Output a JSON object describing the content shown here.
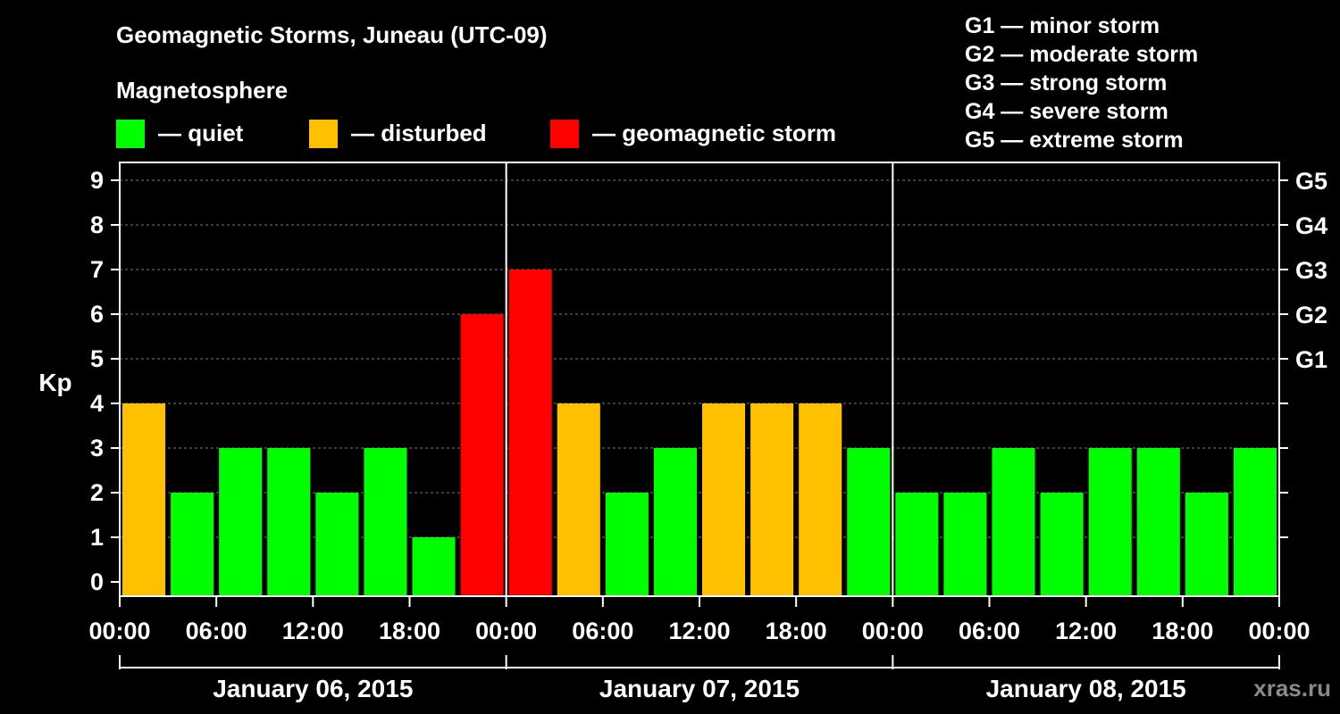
{
  "header": {
    "title": "Geomagnetic Storms, Juneau (UTC-09)",
    "section": "Magnetosphere"
  },
  "legend": [
    {
      "label": "— quiet",
      "color": "#00ff00"
    },
    {
      "label": "— disturbed",
      "color": "#ffc000"
    },
    {
      "label": "— geomagnetic storm",
      "color": "#ff0000"
    }
  ],
  "storm_scale": [
    "G1 — minor storm",
    "G2 — moderate storm",
    "G3 — strong storm",
    "G4 — severe storm",
    "G5 — extreme storm"
  ],
  "watermark": "xras.ru",
  "chart_data": {
    "type": "bar",
    "title": "Geomagnetic Storms, Juneau (UTC-09)",
    "ylabel": "Kp",
    "ylim": [
      0,
      9
    ],
    "yticks": [
      "0",
      "1",
      "2",
      "3",
      "4",
      "5",
      "6",
      "7",
      "8",
      "9"
    ],
    "right_axis": [
      {
        "value": 5,
        "label": "G1"
      },
      {
        "value": 6,
        "label": "G2"
      },
      {
        "value": 7,
        "label": "G3"
      },
      {
        "value": 8,
        "label": "G4"
      },
      {
        "value": 9,
        "label": "G5"
      }
    ],
    "xtick_labels": [
      "00:00",
      "06:00",
      "12:00",
      "18:00",
      "00:00",
      "06:00",
      "12:00",
      "18:00",
      "00:00",
      "06:00",
      "12:00",
      "18:00",
      "00:00"
    ],
    "days": [
      "January 06, 2015",
      "January 07, 2015",
      "January 08, 2015"
    ],
    "interval_hours": 3,
    "values": [
      4,
      2,
      3,
      3,
      2,
      3,
      1,
      6,
      7,
      4,
      2,
      3,
      4,
      4,
      4,
      3,
      2,
      2,
      3,
      2,
      3,
      3,
      2,
      3
    ],
    "colors": {
      "quiet": "#00ff00",
      "disturbed": "#ffc000",
      "storm": "#ff0000"
    }
  }
}
